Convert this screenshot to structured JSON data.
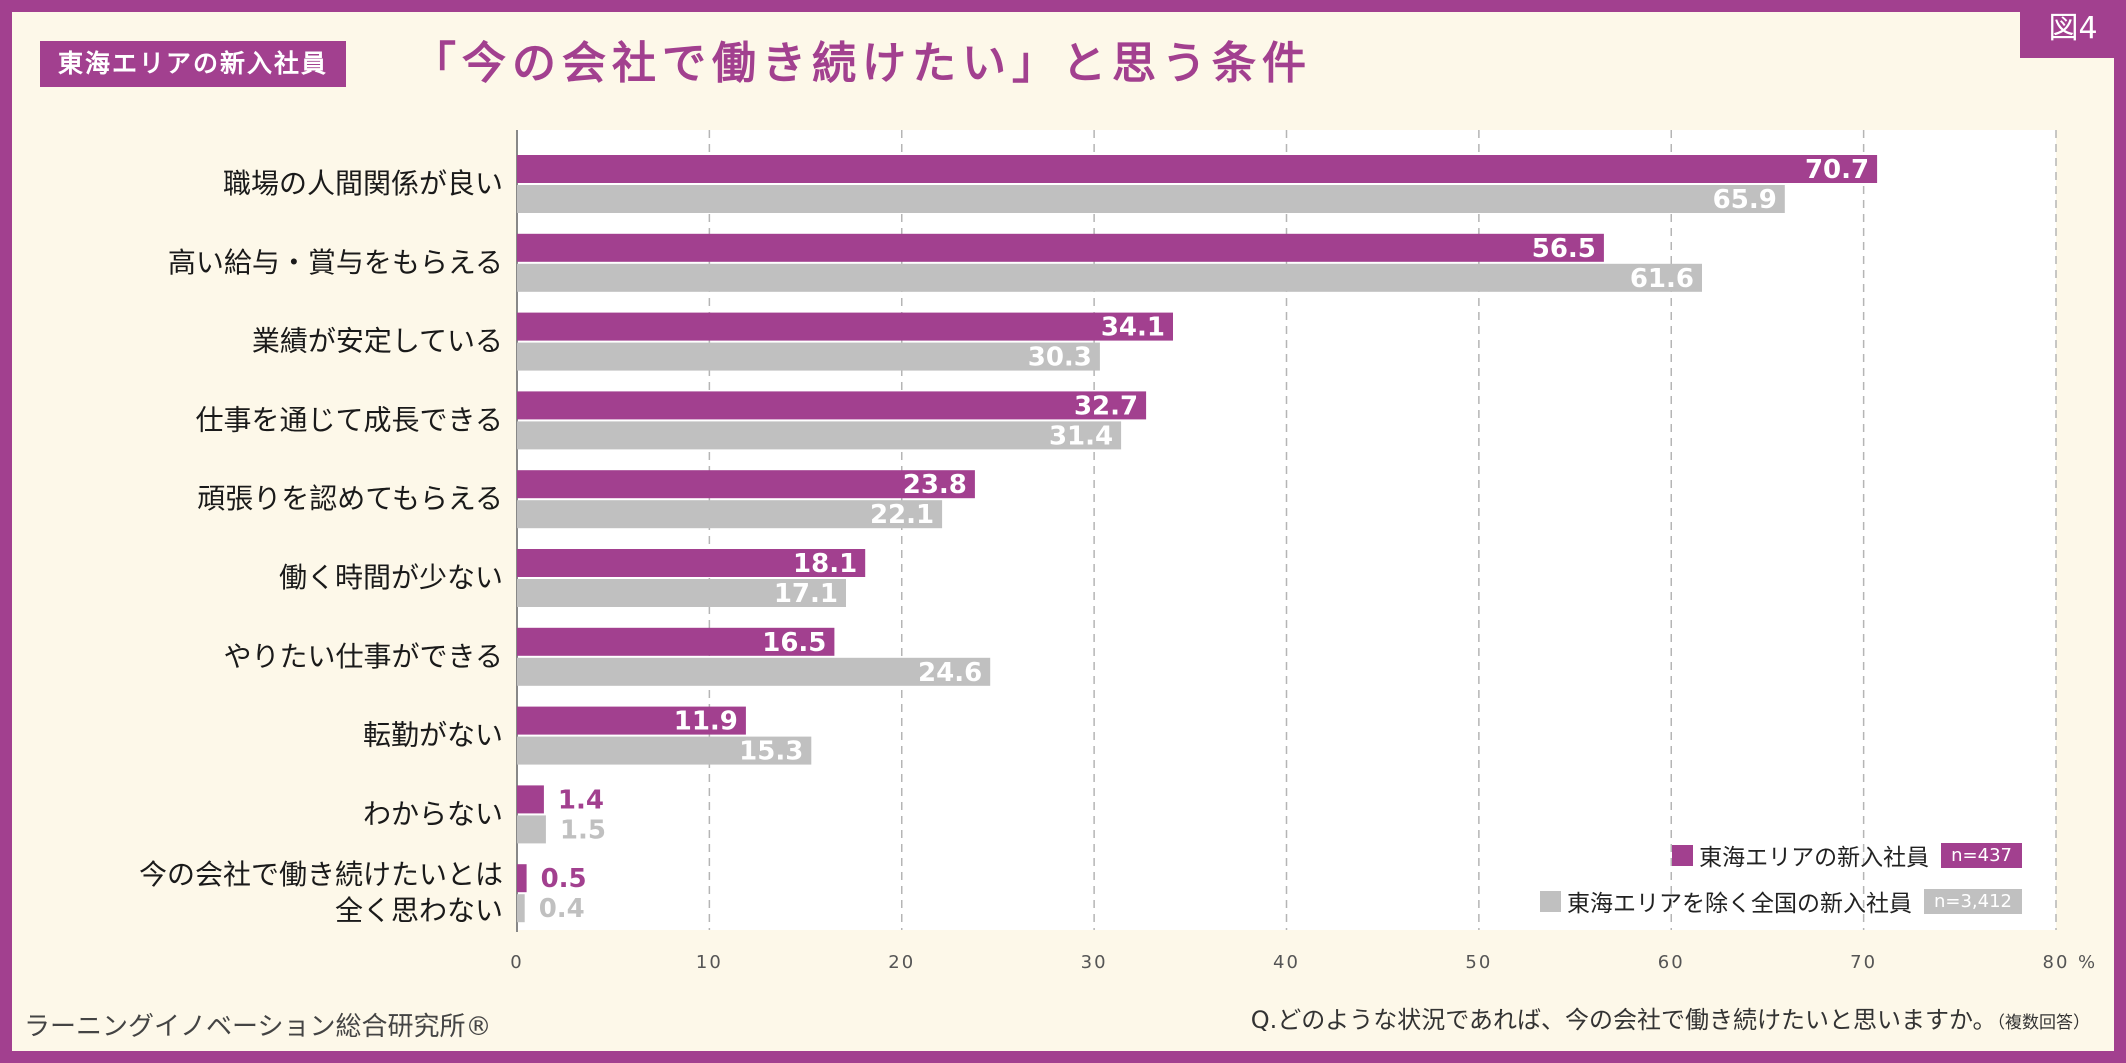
{
  "figure_tag": "図4",
  "title": {
    "badge": "東海エリアの新入社員",
    "main": "「今の会社で働き続けたい」と思う条件"
  },
  "colors": {
    "frame": "#a2408f",
    "background": "#fdf8e9",
    "plot_background": "#ffffff",
    "series1": "#a2408f",
    "series2": "#c0c0c0"
  },
  "chart_data": {
    "type": "bar",
    "orientation": "horizontal",
    "categories": [
      "職場の人間関係が良い",
      "高い給与・賞与をもらえる",
      "業績が安定している",
      "仕事を通じて成長できる",
      "頑張りを認めてもらえる",
      "働く時間が少ない",
      "やりたい仕事ができる",
      "転勤がない",
      "わからない",
      "今の会社で働き続けたいとは\n全く思わない"
    ],
    "series": [
      {
        "name": "東海エリアの新入社員",
        "n": "n=437",
        "color": "#a2408f",
        "values": [
          70.7,
          56.5,
          34.1,
          32.7,
          23.8,
          18.1,
          16.5,
          11.9,
          1.4,
          0.5
        ]
      },
      {
        "name": "東海エリアを除く全国の新入社員",
        "n": "n=3,412",
        "color": "#c0c0c0",
        "values": [
          65.9,
          61.6,
          30.3,
          31.4,
          22.1,
          17.1,
          24.6,
          15.3,
          1.5,
          0.4
        ]
      }
    ],
    "xlim": [
      0,
      80
    ],
    "xticks": [
      0,
      10,
      20,
      30,
      40,
      50,
      60,
      70,
      80
    ],
    "x_unit": "%",
    "grid": true,
    "legend_position": "bottom-right"
  },
  "footer": {
    "brand": "ラーニングイノベーション総合研究所®",
    "question": "Q.どのような状況であれば、今の会社で働き続けたいと思いますか。",
    "question_note": "（複数回答）"
  }
}
